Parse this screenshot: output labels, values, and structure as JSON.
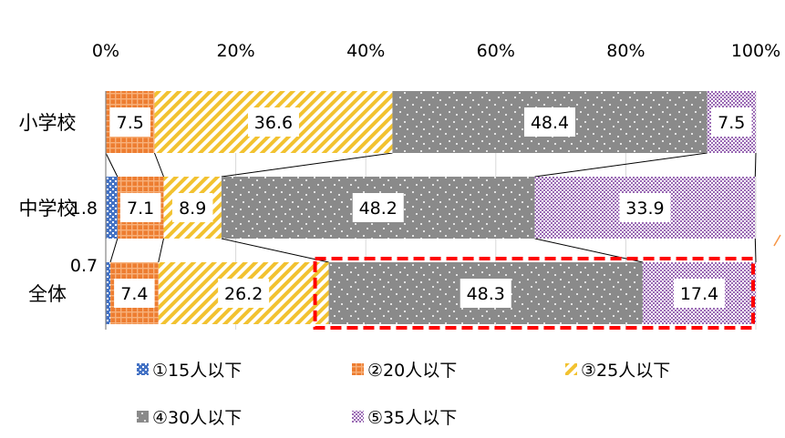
{
  "chart_data": {
    "type": "bar",
    "orientation": "horizontal",
    "stacked": true,
    "percent_stacked": true,
    "xlim": [
      0,
      100
    ],
    "x_ticks": [
      "0%",
      "20%",
      "40%",
      "60%",
      "80%",
      "100%"
    ],
    "categories": [
      "小学校",
      "中学校",
      "全体"
    ],
    "series": [
      {
        "name": "①15人以下",
        "values": [
          0,
          1.8,
          0.7
        ],
        "labels": [
          "",
          "1.8",
          "0.7"
        ],
        "color": "#4472c4",
        "pattern": "dots"
      },
      {
        "name": "②20人以下",
        "values": [
          7.5,
          7.1,
          7.4
        ],
        "labels": [
          "7.5",
          "7.1",
          "7.4"
        ],
        "color": "#ed7d31",
        "pattern": "grid"
      },
      {
        "name": "③25人以下",
        "values": [
          36.6,
          8.9,
          26.2
        ],
        "labels": [
          "36.6",
          "8.9",
          "26.2"
        ],
        "color": "#f4c542",
        "pattern": "diagonal"
      },
      {
        "name": "④30人以下",
        "values": [
          48.4,
          48.2,
          48.3
        ],
        "labels": [
          "48.4",
          "48.2",
          "48.3"
        ],
        "color": "#808080",
        "pattern": "sparse-dots"
      },
      {
        "name": "⑤35人以下",
        "values": [
          7.5,
          33.9,
          17.4
        ],
        "labels": [
          "7.5",
          "33.9",
          "17.4"
        ],
        "color": "#9b6bb5",
        "pattern": "checker"
      }
    ],
    "legend_position": "bottom",
    "grid": true,
    "series_lines": true,
    "highlight_box": {
      "row": "全体",
      "series": [
        "③25人以下",
        "④30人以下",
        "⑤35人以下"
      ],
      "color": "#ff0000",
      "style": "dashed"
    }
  }
}
